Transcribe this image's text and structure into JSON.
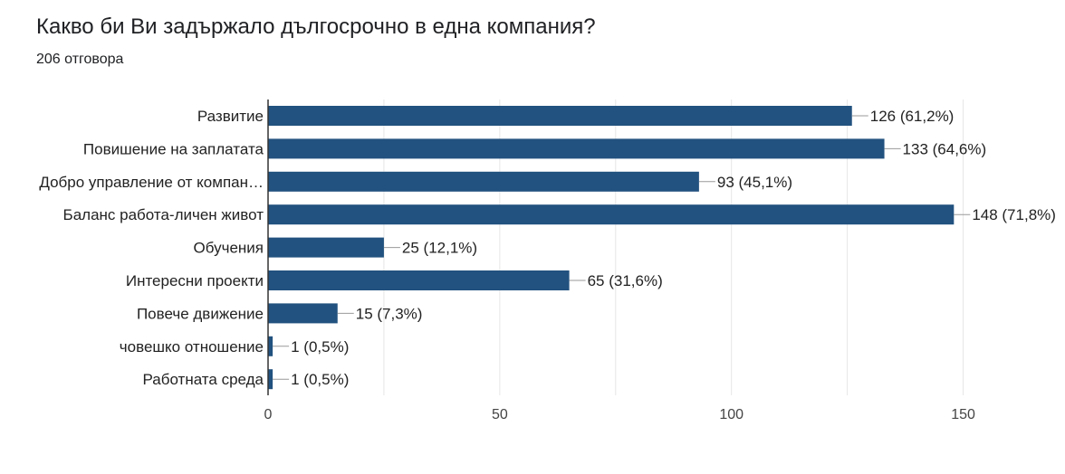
{
  "header": {
    "title": "Какво би Ви задържало дългосрочно в една компания?",
    "subtitle": "206 отговора"
  },
  "colors": {
    "bar": "#22527f",
    "grid": "#e6e6e6",
    "axis": "#333333",
    "leader": "#999999"
  },
  "chart_data": {
    "type": "bar",
    "orientation": "horizontal",
    "title": "Какво би Ви задържало дългосрочно в една компания?",
    "subtitle": "206 отговора",
    "categories": [
      "Развитие",
      "Повишение на заплатата",
      "Добро управление от компан…",
      "Баланс работа-личен живот",
      "Обучения",
      "Интересни проекти",
      "Повече движение",
      "човешко отношение",
      "Работната среда"
    ],
    "values": [
      126,
      133,
      93,
      148,
      25,
      65,
      15,
      1,
      1
    ],
    "value_labels": [
      "126 (61,2%)",
      "133 (64,6%)",
      "93 (45,1%)",
      "148 (71,8%)",
      "25 (12,1%)",
      "65 (31,6%)",
      "15 (7,3%)",
      "1 (0,5%)",
      "1 (0,5%)"
    ],
    "xlim": [
      0,
      150
    ],
    "xticks": [
      0,
      50,
      100,
      150
    ],
    "grid": true,
    "legend": "none"
  }
}
